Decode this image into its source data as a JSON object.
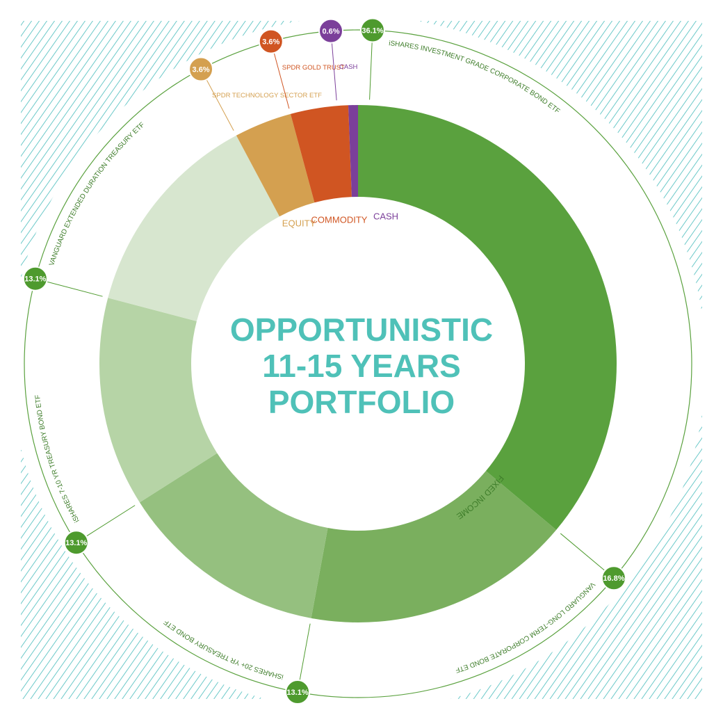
{
  "chart_data": {
    "type": "donut",
    "title": [
      "OPPORTUNISTIC",
      "11-15 YEARS",
      "PORTFOLIO"
    ],
    "categories": [
      "iSHARES INVESTMENT GRADE CORPORATE BOND ETF",
      "VANGUARD LONG-TERM CORPORATE BOND ETF",
      "iSHARES 20+ YR TREASURY BOND ETF",
      "iSHARES 7-10 YR TREASURY BOND ETF",
      "VANGUARD EXTENDED DURATION TREASURY ETF",
      "SPDR TECHNOLOGY SECTOR ETF",
      "SPDR GOLD TRUST",
      "CASH"
    ],
    "values": [
      36.1,
      16.8,
      13.1,
      13.1,
      13.1,
      3.6,
      3.6,
      0.6
    ],
    "value_labels": [
      "36.1%",
      "16.8%",
      "13.1%",
      "13.1%",
      "13.1%",
      "3.6%",
      "3.6%",
      "0.6%"
    ],
    "colors": [
      "#5aa13e",
      "#7aaf5e",
      "#95c07f",
      "#b6d4a6",
      "#d7e6cf",
      "#d4a050",
      "#d05522",
      "#7b3f9a"
    ],
    "badge_colors": [
      "#4e9a2e",
      "#4e9a2e",
      "#4e9a2e",
      "#4e9a2e",
      "#4e9a2e",
      "#d4a050",
      "#d05522",
      "#7b3f9a"
    ],
    "groups": [
      {
        "name": "FIXED INCOME",
        "color": "#3e7d2a"
      },
      {
        "name": "EQUITY",
        "color": "#d4a050"
      },
      {
        "name": "COMMODITY",
        "color": "#d05522"
      },
      {
        "name": "CASH",
        "color": "#7b3f9a"
      }
    ]
  }
}
